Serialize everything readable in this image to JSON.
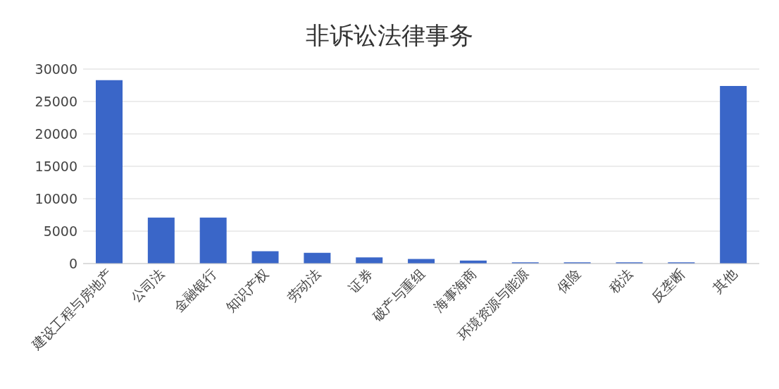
{
  "chart_data": {
    "type": "bar",
    "title": "非诉讼法律事务",
    "categories": [
      "建设工程与房地产",
      "公司法",
      "金融银行",
      "知识产权",
      "劳动法",
      "证券",
      "破产与重组",
      "海事海商",
      "环境资源与能源",
      "保险",
      "税法",
      "反垄断",
      "其他"
    ],
    "values": [
      28300,
      7100,
      7100,
      1900,
      1650,
      950,
      700,
      450,
      200,
      200,
      200,
      200,
      27400
    ],
    "color": "#3a66c8",
    "ylim": [
      0,
      30000
    ],
    "yticks": [
      0,
      5000,
      10000,
      15000,
      20000,
      25000,
      30000
    ],
    "grid": "y"
  }
}
